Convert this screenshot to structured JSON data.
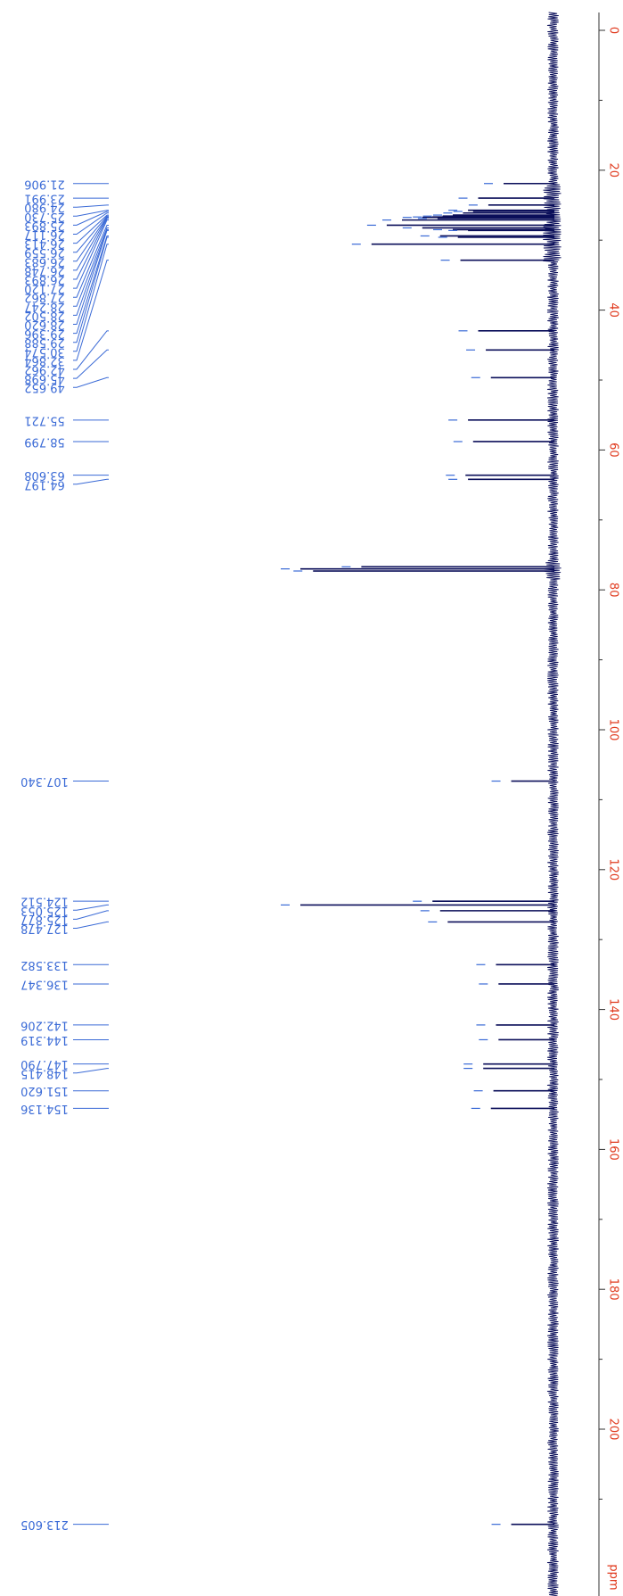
{
  "chart_data": {
    "type": "line",
    "title": "",
    "axis_unit_label": "ppm",
    "axis_range": [
      0,
      220
    ],
    "axis_ticks": [
      0,
      20,
      40,
      60,
      80,
      100,
      120,
      140,
      160,
      180,
      200
    ],
    "peak_labels": [
      "21.906",
      "23.991",
      "24.980",
      "25.730",
      "25.893",
      "26.117",
      "26.413",
      "26.559",
      "26.683",
      "26.748",
      "26.893",
      "27.120",
      "27.862",
      "28.247",
      "28.502",
      "28.620",
      "29.396",
      "29.588",
      "30.574",
      "32.864",
      "42.962",
      "45.698",
      "49.652",
      "55.721",
      "58.799",
      "63.608",
      "64.197",
      "107.340",
      "124.512",
      "125.053",
      "125.877",
      "127.478",
      "133.582",
      "136.347",
      "142.206",
      "144.319",
      "147.790",
      "148.415",
      "151.620",
      "154.136",
      "213.605"
    ],
    "peaks": [
      {
        "ppm": 21.906,
        "intensity": 0.2
      },
      {
        "ppm": 23.991,
        "intensity": 0.3
      },
      {
        "ppm": 24.98,
        "intensity": 0.26
      },
      {
        "ppm": 25.73,
        "intensity": 0.34
      },
      {
        "ppm": 25.893,
        "intensity": 0.32
      },
      {
        "ppm": 26.117,
        "intensity": 0.36
      },
      {
        "ppm": 26.413,
        "intensity": 0.4
      },
      {
        "ppm": 26.559,
        "intensity": 0.44
      },
      {
        "ppm": 26.683,
        "intensity": 0.48
      },
      {
        "ppm": 26.748,
        "intensity": 0.52
      },
      {
        "ppm": 26.893,
        "intensity": 0.46
      },
      {
        "ppm": 27.12,
        "intensity": 0.6
      },
      {
        "ppm": 27.862,
        "intensity": 0.66
      },
      {
        "ppm": 28.247,
        "intensity": 0.52
      },
      {
        "ppm": 28.502,
        "intensity": 0.4
      },
      {
        "ppm": 28.62,
        "intensity": 0.34
      },
      {
        "ppm": 29.396,
        "intensity": 0.45
      },
      {
        "ppm": 29.588,
        "intensity": 0.38
      },
      {
        "ppm": 30.574,
        "intensity": 0.72
      },
      {
        "ppm": 32.864,
        "intensity": 0.37
      },
      {
        "ppm": 42.962,
        "intensity": 0.3
      },
      {
        "ppm": 45.698,
        "intensity": 0.27
      },
      {
        "ppm": 49.652,
        "intensity": 0.25
      },
      {
        "ppm": 55.721,
        "intensity": 0.34
      },
      {
        "ppm": 58.799,
        "intensity": 0.32
      },
      {
        "ppm": 63.608,
        "intensity": 0.35
      },
      {
        "ppm": 64.197,
        "intensity": 0.34
      },
      {
        "ppm": 77.0,
        "intensity": 1.0
      },
      {
        "ppm": 77.3,
        "intensity": 0.95
      },
      {
        "ppm": 76.7,
        "intensity": 0.76
      },
      {
        "ppm": 107.34,
        "intensity": 0.17
      },
      {
        "ppm": 124.512,
        "intensity": 0.48
      },
      {
        "ppm": 125.053,
        "intensity": 1.0
      },
      {
        "ppm": 125.877,
        "intensity": 0.45
      },
      {
        "ppm": 127.478,
        "intensity": 0.42
      },
      {
        "ppm": 133.582,
        "intensity": 0.23
      },
      {
        "ppm": 136.347,
        "intensity": 0.22
      },
      {
        "ppm": 142.206,
        "intensity": 0.23
      },
      {
        "ppm": 144.319,
        "intensity": 0.22
      },
      {
        "ppm": 147.79,
        "intensity": 0.28
      },
      {
        "ppm": 148.415,
        "intensity": 0.28
      },
      {
        "ppm": 151.62,
        "intensity": 0.24
      },
      {
        "ppm": 154.136,
        "intensity": 0.25
      },
      {
        "ppm": 213.605,
        "intensity": 0.17
      }
    ],
    "grid": false,
    "orientation": "rotated-vertical",
    "colors": {
      "spectrum": "#0b0f5a",
      "peak_label": "#3a6ad6",
      "axis": "#e03a1e"
    }
  }
}
